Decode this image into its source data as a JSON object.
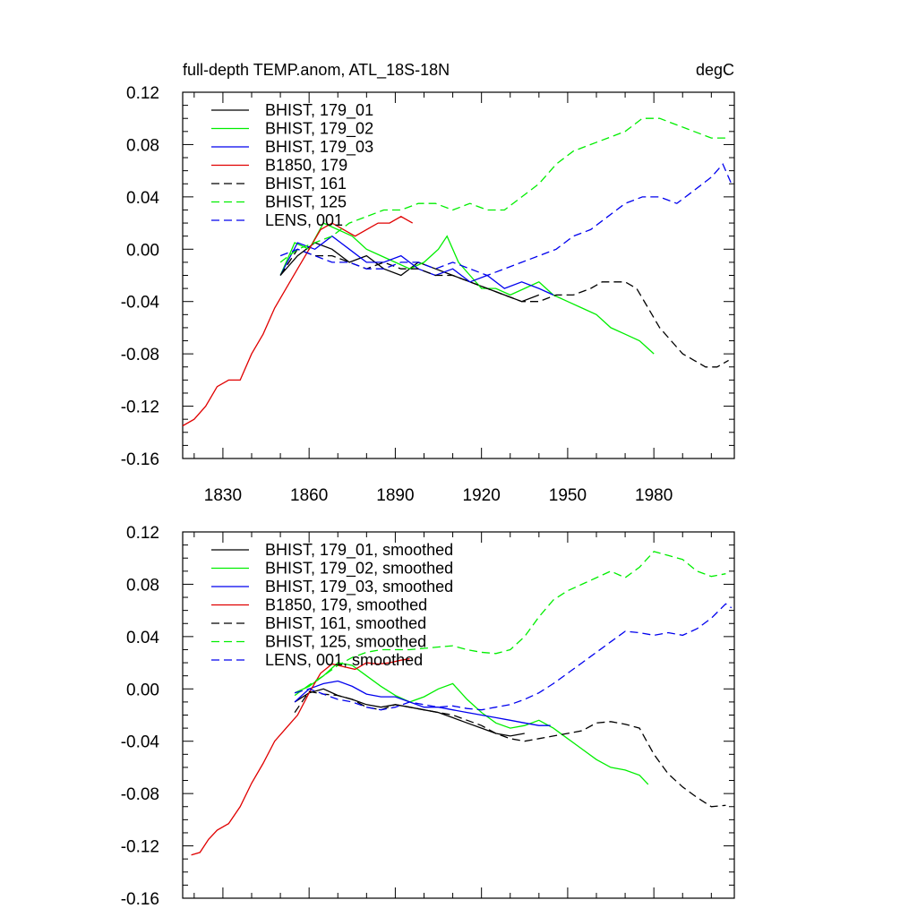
{
  "figure": {
    "title_left": "full-depth TEMP.anom, ATL_18S-18N",
    "title_right": "degC"
  },
  "colors": {
    "black": "#000000",
    "green": "#00ee00",
    "blue": "#0000ee",
    "red": "#e00000"
  },
  "chart_data": [
    {
      "type": "line",
      "title": "full-depth TEMP.anom, ATL_18S-18N",
      "units": "degC",
      "xlim": [
        1816,
        2008
      ],
      "ylim": [
        -0.16,
        0.12
      ],
      "x_ticks": [
        1830,
        1860,
        1890,
        1920,
        1950,
        1980
      ],
      "y_ticks": [
        "0.12",
        "0.08",
        "0.04",
        "0.00",
        "-0.04",
        "-0.08",
        "-0.12",
        "-0.16"
      ],
      "legend_position": "top-left",
      "series": [
        {
          "name": "BHIST, 179_01",
          "color": "black",
          "dash": false,
          "x": [
            1850,
            1856,
            1862,
            1868,
            1874,
            1880,
            1886,
            1892,
            1898,
            1904,
            1910,
            1916,
            1922,
            1928,
            1934,
            1940
          ],
          "y": [
            -0.02,
            -0.005,
            0.005,
            0.0,
            -0.01,
            -0.005,
            -0.015,
            -0.02,
            -0.01,
            -0.015,
            -0.02,
            -0.025,
            -0.03,
            -0.035,
            -0.04,
            -0.035
          ]
        },
        {
          "name": "BHIST, 179_02",
          "color": "green",
          "dash": false,
          "x": [
            1850,
            1855,
            1860,
            1865,
            1870,
            1875,
            1880,
            1885,
            1890,
            1895,
            1900,
            1905,
            1908,
            1912,
            1916,
            1920,
            1925,
            1930,
            1935,
            1940,
            1945,
            1950,
            1955,
            1960,
            1965,
            1970,
            1975,
            1980
          ],
          "y": [
            -0.02,
            0.005,
            0.0,
            0.02,
            0.015,
            0.01,
            0.0,
            -0.005,
            -0.01,
            -0.015,
            -0.01,
            0.0,
            0.01,
            -0.01,
            -0.02,
            -0.03,
            -0.03,
            -0.035,
            -0.03,
            -0.025,
            -0.035,
            -0.04,
            -0.045,
            -0.05,
            -0.06,
            -0.065,
            -0.07,
            -0.08
          ]
        },
        {
          "name": "BHIST, 179_03",
          "color": "blue",
          "dash": false,
          "x": [
            1850,
            1856,
            1862,
            1868,
            1874,
            1880,
            1886,
            1892,
            1898,
            1904,
            1910,
            1916,
            1922,
            1928,
            1934,
            1940,
            1945
          ],
          "y": [
            -0.02,
            0.005,
            0.0,
            0.01,
            0.0,
            -0.01,
            -0.01,
            -0.005,
            -0.015,
            -0.02,
            -0.015,
            -0.025,
            -0.02,
            -0.03,
            -0.025,
            -0.03,
            -0.035
          ]
        },
        {
          "name": "B1850, 179",
          "color": "red",
          "dash": false,
          "x": [
            1816,
            1820,
            1824,
            1828,
            1832,
            1836,
            1840,
            1844,
            1848,
            1852,
            1856,
            1860,
            1864,
            1868,
            1872,
            1876,
            1880,
            1884,
            1888,
            1892,
            1896
          ],
          "y": [
            -0.135,
            -0.13,
            -0.12,
            -0.105,
            -0.1,
            -0.1,
            -0.08,
            -0.065,
            -0.045,
            -0.03,
            -0.015,
            0.0,
            0.015,
            0.02,
            0.015,
            0.01,
            0.015,
            0.02,
            0.02,
            0.025,
            0.02
          ]
        },
        {
          "name": "BHIST, 161",
          "color": "black",
          "dash": true,
          "x": [
            1850,
            1856,
            1862,
            1868,
            1874,
            1880,
            1886,
            1892,
            1898,
            1904,
            1910,
            1916,
            1922,
            1928,
            1934,
            1940,
            1946,
            1952,
            1958,
            1962,
            1966,
            1970,
            1974,
            1978,
            1982,
            1986,
            1990,
            1994,
            1998,
            2002,
            2006
          ],
          "y": [
            -0.02,
            0.0,
            -0.005,
            -0.005,
            -0.01,
            -0.015,
            -0.01,
            -0.015,
            -0.015,
            -0.02,
            -0.02,
            -0.025,
            -0.03,
            -0.035,
            -0.04,
            -0.04,
            -0.035,
            -0.035,
            -0.03,
            -0.025,
            -0.025,
            -0.025,
            -0.03,
            -0.045,
            -0.06,
            -0.07,
            -0.08,
            -0.085,
            -0.09,
            -0.09,
            -0.085
          ]
        },
        {
          "name": "BHIST, 125",
          "color": "green",
          "dash": true,
          "x": [
            1850,
            1856,
            1862,
            1868,
            1874,
            1880,
            1886,
            1892,
            1898,
            1904,
            1910,
            1916,
            1922,
            1928,
            1934,
            1940,
            1946,
            1952,
            1958,
            1964,
            1970,
            1976,
            1982,
            1988,
            1994,
            2000,
            2006
          ],
          "y": [
            -0.01,
            0.0,
            0.005,
            0.01,
            0.02,
            0.025,
            0.03,
            0.03,
            0.035,
            0.035,
            0.03,
            0.035,
            0.03,
            0.03,
            0.04,
            0.05,
            0.065,
            0.075,
            0.08,
            0.085,
            0.09,
            0.1,
            0.1,
            0.095,
            0.09,
            0.085,
            0.085
          ]
        },
        {
          "name": "LENS, 001",
          "color": "blue",
          "dash": true,
          "x": [
            1850,
            1856,
            1862,
            1868,
            1874,
            1880,
            1886,
            1892,
            1898,
            1904,
            1910,
            1916,
            1922,
            1928,
            1934,
            1940,
            1946,
            1952,
            1958,
            1964,
            1970,
            1976,
            1982,
            1988,
            1994,
            2000,
            2004,
            2007
          ],
          "y": [
            -0.005,
            0.0,
            -0.005,
            -0.01,
            -0.01,
            -0.015,
            -0.015,
            -0.01,
            -0.01,
            -0.015,
            -0.01,
            -0.015,
            -0.02,
            -0.015,
            -0.01,
            -0.005,
            0.0,
            0.01,
            0.015,
            0.025,
            0.035,
            0.04,
            0.04,
            0.035,
            0.045,
            0.055,
            0.065,
            0.05
          ]
        }
      ]
    },
    {
      "type": "line",
      "title": "",
      "xlim": [
        1816,
        2008
      ],
      "ylim": [
        -0.16,
        0.12
      ],
      "y_ticks": [
        "0.12",
        "0.08",
        "0.04",
        "0.00",
        "-0.04",
        "-0.08",
        "-0.12",
        "-0.16"
      ],
      "legend_position": "top-left",
      "series": [
        {
          "name": "BHIST, 179_01, smoothed",
          "color": "black",
          "dash": false,
          "x": [
            1855,
            1860,
            1865,
            1870,
            1875,
            1880,
            1885,
            1890,
            1895,
            1900,
            1905,
            1910,
            1915,
            1920,
            1925,
            1930,
            1935
          ],
          "y": [
            -0.01,
            -0.003,
            0.0,
            -0.005,
            -0.008,
            -0.012,
            -0.014,
            -0.012,
            -0.014,
            -0.016,
            -0.018,
            -0.022,
            -0.026,
            -0.03,
            -0.034,
            -0.036,
            -0.034
          ]
        },
        {
          "name": "BHIST, 179_02, smoothed",
          "color": "green",
          "dash": false,
          "x": [
            1855,
            1860,
            1865,
            1870,
            1875,
            1880,
            1885,
            1890,
            1895,
            1900,
            1905,
            1910,
            1915,
            1920,
            1925,
            1930,
            1935,
            1940,
            1945,
            1950,
            1955,
            1960,
            1965,
            1970,
            1975,
            1978
          ],
          "y": [
            -0.003,
            0.002,
            0.01,
            0.02,
            0.018,
            0.01,
            0.002,
            -0.005,
            -0.01,
            -0.006,
            0.0,
            0.004,
            -0.008,
            -0.018,
            -0.026,
            -0.03,
            -0.028,
            -0.024,
            -0.03,
            -0.038,
            -0.046,
            -0.054,
            -0.06,
            -0.062,
            -0.066,
            -0.073
          ]
        },
        {
          "name": "BHIST, 179_03, smoothed",
          "color": "blue",
          "dash": false,
          "x": [
            1855,
            1860,
            1865,
            1870,
            1875,
            1880,
            1885,
            1890,
            1895,
            1900,
            1905,
            1910,
            1915,
            1920,
            1925,
            1930,
            1935,
            1940,
            1944
          ],
          "y": [
            -0.01,
            0.0,
            0.004,
            0.006,
            0.002,
            -0.004,
            -0.006,
            -0.006,
            -0.01,
            -0.014,
            -0.014,
            -0.016,
            -0.018,
            -0.02,
            -0.022,
            -0.024,
            -0.026,
            -0.028,
            -0.028
          ]
        },
        {
          "name": "B1850, 179, smoothed",
          "color": "red",
          "dash": false,
          "x": [
            1819,
            1822,
            1825,
            1828,
            1832,
            1836,
            1840,
            1844,
            1848,
            1852,
            1856,
            1860,
            1864,
            1868,
            1872,
            1876,
            1880,
            1884,
            1888,
            1892,
            1895
          ],
          "y": [
            -0.127,
            -0.125,
            -0.115,
            -0.108,
            -0.103,
            -0.09,
            -0.072,
            -0.057,
            -0.04,
            -0.03,
            -0.02,
            -0.003,
            0.012,
            0.019,
            0.017,
            0.015,
            0.02,
            0.019,
            0.02,
            0.022,
            0.023
          ]
        },
        {
          "name": "BHIST, 161, smoothed",
          "color": "black",
          "dash": true,
          "x": [
            1855,
            1860,
            1865,
            1870,
            1875,
            1880,
            1885,
            1890,
            1895,
            1900,
            1905,
            1910,
            1915,
            1920,
            1925,
            1930,
            1935,
            1940,
            1945,
            1950,
            1955,
            1960,
            1965,
            1970,
            1975,
            1980,
            1985,
            1990,
            1995,
            2000,
            2005
          ],
          "y": [
            -0.018,
            -0.002,
            -0.004,
            -0.005,
            -0.008,
            -0.014,
            -0.016,
            -0.012,
            -0.014,
            -0.016,
            -0.018,
            -0.02,
            -0.024,
            -0.028,
            -0.034,
            -0.038,
            -0.04,
            -0.038,
            -0.036,
            -0.034,
            -0.032,
            -0.026,
            -0.025,
            -0.027,
            -0.03,
            -0.05,
            -0.065,
            -0.075,
            -0.083,
            -0.09,
            -0.089
          ]
        },
        {
          "name": "BHIST, 125, smoothed",
          "color": "green",
          "dash": true,
          "x": [
            1855,
            1860,
            1865,
            1870,
            1875,
            1880,
            1885,
            1890,
            1895,
            1900,
            1905,
            1910,
            1915,
            1920,
            1925,
            1930,
            1935,
            1940,
            1945,
            1950,
            1955,
            1960,
            1965,
            1970,
            1975,
            1980,
            1985,
            1990,
            1995,
            2000,
            2005
          ],
          "y": [
            -0.005,
            0.003,
            0.01,
            0.018,
            0.024,
            0.028,
            0.03,
            0.03,
            0.03,
            0.031,
            0.032,
            0.033,
            0.03,
            0.028,
            0.027,
            0.03,
            0.04,
            0.055,
            0.068,
            0.075,
            0.08,
            0.085,
            0.09,
            0.085,
            0.093,
            0.105,
            0.102,
            0.099,
            0.09,
            0.086,
            0.088
          ]
        },
        {
          "name": "LENS, 001, smoothed",
          "color": "blue",
          "dash": true,
          "x": [
            1855,
            1860,
            1865,
            1870,
            1875,
            1880,
            1885,
            1890,
            1895,
            1900,
            1905,
            1910,
            1915,
            1920,
            1925,
            1930,
            1935,
            1940,
            1945,
            1950,
            1955,
            1960,
            1965,
            1970,
            1975,
            1980,
            1985,
            1990,
            1995,
            2000,
            2005,
            2007
          ],
          "y": [
            -0.003,
            0.0,
            -0.004,
            -0.008,
            -0.01,
            -0.014,
            -0.016,
            -0.014,
            -0.01,
            -0.012,
            -0.014,
            -0.013,
            -0.015,
            -0.016,
            -0.014,
            -0.012,
            -0.008,
            -0.003,
            0.004,
            0.012,
            0.02,
            0.028,
            0.036,
            0.044,
            0.043,
            0.041,
            0.043,
            0.041,
            0.046,
            0.054,
            0.065,
            0.062
          ]
        }
      ]
    }
  ]
}
